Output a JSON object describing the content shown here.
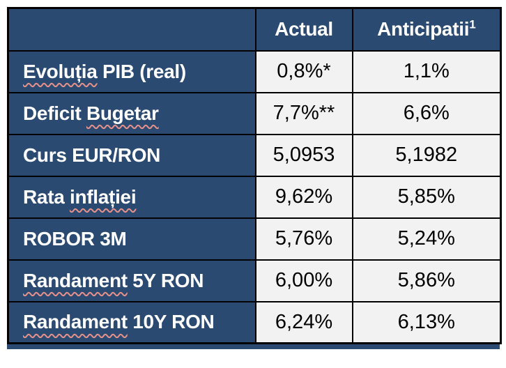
{
  "colors": {
    "navy": "#2B4A72",
    "value_cell_bg": "#F2F2F2",
    "grid_border": "#000000",
    "squiggle": "#E8918A",
    "header_text": "#FFFFFF",
    "value_text": "#000000",
    "page_bg": "#FFFFFF"
  },
  "table": {
    "header": {
      "label": "",
      "actual": "Actual",
      "anticipated": "Anticipatii",
      "anticipated_superscript": "1"
    },
    "rows": [
      {
        "label": "Evoluția PIB (real)",
        "label_parts": [
          {
            "text": "Evoluția",
            "misspelled": true
          },
          {
            "text": " PIB (real)",
            "misspelled": false
          }
        ],
        "actual": "0,8%*",
        "anticipated": "1,1%"
      },
      {
        "label": "Deficit Bugetar",
        "label_parts": [
          {
            "text": "Deficit ",
            "misspelled": false
          },
          {
            "text": "Bugetar",
            "misspelled": true
          }
        ],
        "actual": "7,7%**",
        "anticipated": "6,6%"
      },
      {
        "label": "Curs EUR/RON",
        "label_parts": [
          {
            "text": "Curs EUR/RON",
            "misspelled": false
          }
        ],
        "actual": "5,0953",
        "anticipated": "5,1982"
      },
      {
        "label": "Rata inflației",
        "label_parts": [
          {
            "text": "Rata ",
            "misspelled": false
          },
          {
            "text": "inflației",
            "misspelled": true
          }
        ],
        "actual": "9,62%",
        "anticipated": "5,85%"
      },
      {
        "label": "ROBOR 3M",
        "label_parts": [
          {
            "text": "ROBOR 3M",
            "misspelled": false
          }
        ],
        "actual": "5,76%",
        "anticipated": "5,24%"
      },
      {
        "label": "Randament 5Y RON",
        "label_parts": [
          {
            "text": "Randament",
            "misspelled": true
          },
          {
            "text": " 5Y RON",
            "misspelled": false
          }
        ],
        "actual": "6,00%",
        "anticipated": "5,86%"
      },
      {
        "label": "Randament 10Y RON",
        "label_parts": [
          {
            "text": "Randament",
            "misspelled": true
          },
          {
            "text": " 10Y RON",
            "misspelled": false
          }
        ],
        "actual": "6,24%",
        "anticipated": "6,13%"
      }
    ]
  },
  "chart_data": {
    "type": "table",
    "categories": [
      "Evoluția PIB (real)",
      "Deficit Bugetar",
      "Curs EUR/RON",
      "Rata inflației",
      "ROBOR 3M",
      "Randament 5Y RON",
      "Randament 10Y RON"
    ],
    "series": [
      {
        "name": "Actual",
        "values": [
          "0,8%*",
          "7,7%**",
          "5,0953",
          "9,62%",
          "5,76%",
          "6,00%",
          "6,24%"
        ]
      },
      {
        "name": "Anticipatii¹",
        "values": [
          "1,1%",
          "6,6%",
          "5,1982",
          "5,85%",
          "5,24%",
          "5,86%",
          "6,13%"
        ]
      }
    ]
  }
}
